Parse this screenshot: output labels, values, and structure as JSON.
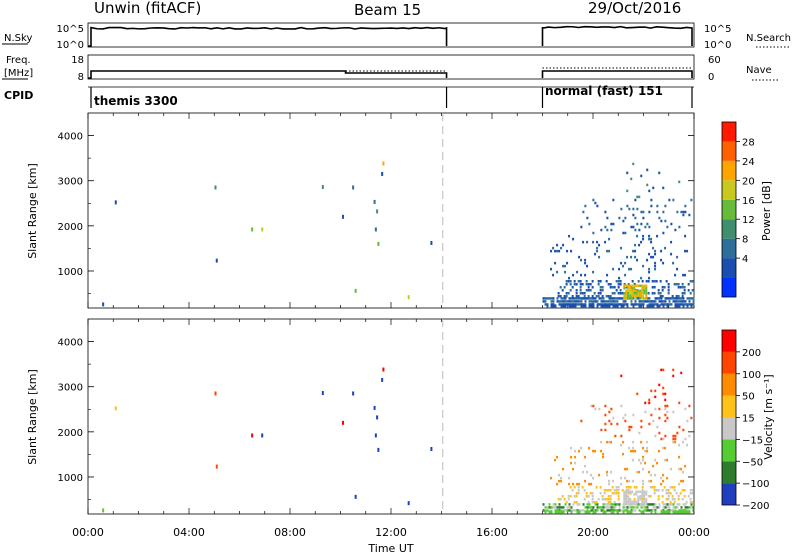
{
  "header": {
    "station": "Unwin (fitACF)",
    "beam": "Beam 15",
    "date": "29/Oct/2016"
  },
  "params": {
    "nsky_label": "N.Sky",
    "nsky_ticks": [
      "10^5",
      "10^0"
    ],
    "nsearch_label": "N.Search",
    "nsearch_ticks": [
      "10^5",
      "10^0"
    ],
    "freq_label": [
      "Freq.",
      "[MHz]"
    ],
    "freq_ticks": [
      "18",
      "8"
    ],
    "nave_label": "Nave",
    "nave_ticks": [
      "60",
      "0"
    ],
    "cpid_label": "CPID",
    "cpid_segments": [
      {
        "name": "themis 3300",
        "start": 0,
        "end": 14.2
      },
      {
        "name": "normal (fast) 151",
        "start": 18.0,
        "end": 24.0
      }
    ]
  },
  "colors": {
    "power": [
      "#0033ff",
      "#1a4fb0",
      "#2d6e9a",
      "#3f8f6f",
      "#66bb3a",
      "#c8c81e",
      "#ffa500",
      "#ff6000",
      "#ff1a00"
    ],
    "velocity": [
      "#1f3fbf",
      "#2e7d2e",
      "#55cc33",
      "#c8c8c8",
      "#ffc21a",
      "#ff8c00",
      "#ff4500",
      "#ff0000"
    ]
  },
  "chart_data": [
    {
      "type": "heatmap",
      "name": "power",
      "ylabel": "Slant Range [km]",
      "colorbar_label": "Power [dB]",
      "colorbar_ticks": [
        "28",
        "24",
        "20",
        "16",
        "12",
        "8",
        "4"
      ],
      "xlim": [
        0,
        24
      ],
      "ylim": [
        180,
        4500
      ],
      "yticks": [
        1000,
        2000,
        3000,
        4000
      ],
      "gap": [
        14.2,
        18.0
      ],
      "points": [
        [
          1.1,
          2520,
          1
        ],
        [
          5.05,
          2850,
          3
        ],
        [
          5.1,
          1230,
          1
        ],
        [
          6.5,
          1920,
          4
        ],
        [
          6.9,
          1920,
          5
        ],
        [
          9.3,
          2860,
          3
        ],
        [
          10.1,
          2200,
          1
        ],
        [
          10.5,
          2850,
          2
        ],
        [
          10.6,
          560,
          4
        ],
        [
          11.35,
          2530,
          2
        ],
        [
          11.45,
          2320,
          3
        ],
        [
          11.4,
          1920,
          2
        ],
        [
          11.5,
          1600,
          4
        ],
        [
          11.7,
          3380,
          6
        ],
        [
          11.65,
          3150,
          1
        ],
        [
          13.6,
          1620,
          1
        ],
        [
          12.7,
          420,
          5
        ],
        [
          0.6,
          260,
          1
        ]
      ],
      "bands": [
        {
          "start": 18.0,
          "end": 24.0,
          "lo": 200,
          "hi": 420,
          "density": 0.85,
          "levels": [
            1,
            2
          ]
        },
        {
          "start": 18.6,
          "end": 24.0,
          "lo": 420,
          "hi": 800,
          "density": 0.35,
          "levels": [
            1,
            2
          ]
        },
        {
          "start": 18.3,
          "end": 23.8,
          "lo": 800,
          "hi": 1800,
          "density": 0.12,
          "levels": [
            1,
            2
          ]
        },
        {
          "start": 19.5,
          "end": 23.9,
          "lo": 1800,
          "hi": 2600,
          "density": 0.1,
          "levels": [
            1,
            2
          ]
        },
        {
          "start": 21.0,
          "end": 23.5,
          "lo": 2600,
          "hi": 3400,
          "density": 0.04,
          "levels": [
            1,
            3
          ]
        }
      ],
      "hotspot": {
        "x": [
          21.2,
          22.1
        ],
        "y": [
          380,
          700
        ]
      }
    },
    {
      "type": "heatmap",
      "name": "velocity",
      "ylabel": "Slant Range [km]",
      "colorbar_label": "Velocity [m s⁻¹]",
      "colorbar_ticks": [
        "200",
        "100",
        "50",
        "15",
        "−15",
        "−50",
        "−100",
        "−200"
      ],
      "xlim": [
        0,
        24
      ],
      "ylim": [
        180,
        4500
      ],
      "yticks": [
        1000,
        2000,
        3000,
        4000
      ],
      "xticks": [
        "00:00",
        "04:00",
        "08:00",
        "12:00",
        "16:00",
        "20:00",
        "00:00"
      ],
      "xlabel": "Time UT",
      "gap": [
        14.2,
        18.0
      ],
      "points": [
        [
          1.1,
          2520,
          4
        ],
        [
          5.05,
          2850,
          6
        ],
        [
          5.1,
          1230,
          6
        ],
        [
          6.5,
          1920,
          7
        ],
        [
          6.9,
          1920,
          0
        ],
        [
          9.3,
          2860,
          0
        ],
        [
          10.1,
          2200,
          7
        ],
        [
          10.5,
          2850,
          0
        ],
        [
          10.6,
          560,
          0
        ],
        [
          11.35,
          2530,
          0
        ],
        [
          11.45,
          2320,
          0
        ],
        [
          11.4,
          1920,
          0
        ],
        [
          11.5,
          1600,
          0
        ],
        [
          11.7,
          3380,
          7
        ],
        [
          11.65,
          3150,
          0
        ],
        [
          13.6,
          1620,
          0
        ],
        [
          12.7,
          420,
          0
        ],
        [
          0.6,
          260,
          2
        ]
      ],
      "bands": [
        {
          "start": 18.0,
          "end": 24.0,
          "lo": 200,
          "hi": 420,
          "density": 0.75,
          "levels": [
            2,
            3,
            1
          ]
        },
        {
          "start": 18.6,
          "end": 24.0,
          "lo": 420,
          "hi": 800,
          "density": 0.35,
          "levels": [
            3,
            4
          ]
        },
        {
          "start": 18.3,
          "end": 23.8,
          "lo": 800,
          "hi": 1800,
          "density": 0.12,
          "levels": [
            3,
            5
          ]
        },
        {
          "start": 19.5,
          "end": 23.9,
          "lo": 1800,
          "hi": 2600,
          "density": 0.1,
          "levels": [
            6,
            3
          ]
        },
        {
          "start": 21.0,
          "end": 23.5,
          "lo": 2600,
          "hi": 3400,
          "density": 0.04,
          "levels": [
            6,
            7
          ]
        }
      ],
      "hotspot": {
        "x": [
          21.2,
          22.1
        ],
        "y": [
          380,
          700
        ]
      }
    }
  ]
}
